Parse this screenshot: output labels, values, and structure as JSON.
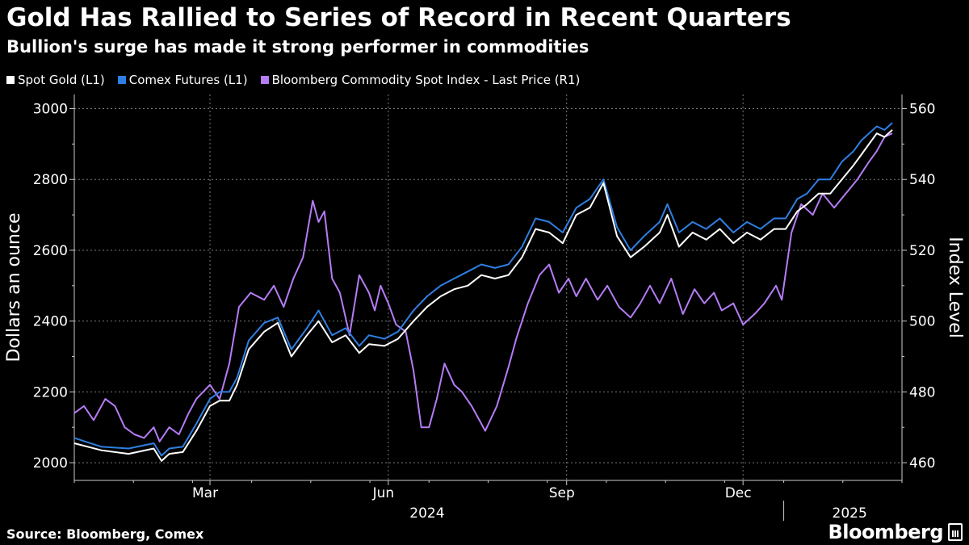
{
  "chart_data": {
    "type": "line",
    "title": "Gold Has Rallied to Series of Record in Recent Quarters",
    "subtitle": "Bullion's surge has made it strong performer in commodities",
    "ylabel_left": "Dollars an ounce",
    "ylabel_right": "Index Level",
    "ylim_left": [
      1950,
      3040
    ],
    "ylim_right": [
      455,
      564
    ],
    "yticks_left": [
      2000,
      2200,
      2400,
      2600,
      2800,
      3000
    ],
    "yticks_right": [
      460,
      480,
      500,
      520,
      540,
      560
    ],
    "xlim": [
      0,
      427
    ],
    "x_month_labels": [
      {
        "label": "Mar",
        "x": 70
      },
      {
        "label": "Jun",
        "x": 162
      },
      {
        "label": "Sep",
        "x": 254
      },
      {
        "label": "Dec",
        "x": 345
      }
    ],
    "x_year_labels": [
      {
        "label": "2024",
        "x": 182
      },
      {
        "label": "2025",
        "x": 400
      }
    ],
    "year_separator_x": 366,
    "grid": true,
    "series": [
      {
        "name": "Spot Gold (L1)",
        "axis": "left",
        "color": "#ffffff",
        "x": [
          0,
          14,
          28,
          41,
          45,
          49,
          56,
          63,
          70,
          75,
          80,
          84,
          90,
          98,
          105,
          112,
          120,
          126,
          133,
          140,
          147,
          152,
          160,
          167,
          175,
          182,
          189,
          196,
          203,
          210,
          217,
          224,
          231,
          238,
          245,
          252,
          259,
          266,
          273,
          280,
          287,
          294,
          302,
          306,
          312,
          319,
          326,
          333,
          340,
          347,
          354,
          361,
          367,
          373,
          378,
          384,
          390,
          396,
          402,
          406,
          410,
          414,
          418,
          422
        ],
        "values": [
          2055,
          2035,
          2025,
          2040,
          2005,
          2025,
          2030,
          2090,
          2160,
          2175,
          2175,
          2220,
          2320,
          2370,
          2395,
          2300,
          2360,
          2400,
          2340,
          2360,
          2310,
          2335,
          2330,
          2350,
          2400,
          2440,
          2470,
          2490,
          2500,
          2530,
          2520,
          2530,
          2580,
          2660,
          2650,
          2620,
          2700,
          2720,
          2790,
          2640,
          2580,
          2610,
          2650,
          2700,
          2610,
          2650,
          2630,
          2660,
          2620,
          2650,
          2630,
          2660,
          2660,
          2710,
          2730,
          2760,
          2760,
          2800,
          2840,
          2870,
          2900,
          2930,
          2920,
          2940
        ]
      },
      {
        "name": "Comex Futures (L1)",
        "axis": "left",
        "color": "#2e7fe2",
        "x": [
          0,
          14,
          28,
          41,
          45,
          49,
          56,
          63,
          70,
          75,
          80,
          84,
          90,
          98,
          105,
          112,
          120,
          126,
          133,
          140,
          147,
          152,
          160,
          167,
          175,
          182,
          189,
          196,
          203,
          210,
          217,
          224,
          231,
          238,
          245,
          252,
          259,
          266,
          273,
          280,
          287,
          294,
          302,
          306,
          312,
          319,
          326,
          333,
          340,
          347,
          354,
          361,
          367,
          373,
          378,
          384,
          390,
          396,
          402,
          406,
          410,
          414,
          418,
          422
        ],
        "values": [
          2070,
          2045,
          2040,
          2055,
          2020,
          2040,
          2045,
          2110,
          2180,
          2200,
          2200,
          2240,
          2345,
          2395,
          2410,
          2320,
          2380,
          2430,
          2360,
          2380,
          2330,
          2360,
          2350,
          2370,
          2430,
          2470,
          2500,
          2520,
          2540,
          2560,
          2550,
          2560,
          2610,
          2690,
          2680,
          2650,
          2720,
          2745,
          2800,
          2665,
          2600,
          2640,
          2680,
          2730,
          2650,
          2680,
          2660,
          2690,
          2650,
          2680,
          2660,
          2690,
          2690,
          2745,
          2760,
          2800,
          2800,
          2850,
          2880,
          2910,
          2930,
          2950,
          2940,
          2960
        ]
      },
      {
        "name": "Bloomberg Commodity Spot Index - Last Price (R1)",
        "axis": "right",
        "color": "#b57cf5",
        "x": [
          0,
          5,
          10,
          16,
          21,
          26,
          31,
          36,
          41,
          44,
          49,
          54,
          59,
          63,
          70,
          75,
          80,
          85,
          91,
          98,
          103,
          108,
          113,
          118,
          123,
          126,
          129,
          133,
          137,
          142,
          147,
          152,
          155,
          158,
          162,
          166,
          171,
          175,
          179,
          183,
          187,
          191,
          196,
          200,
          205,
          209,
          212,
          218,
          224,
          228,
          234,
          240,
          245,
          250,
          255,
          259,
          264,
          270,
          275,
          281,
          287,
          292,
          297,
          302,
          308,
          314,
          320,
          325,
          330,
          334,
          340,
          345,
          351,
          356,
          362,
          365,
          370,
          375,
          381,
          386,
          392,
          398,
          404,
          410,
          414,
          418,
          422
        ],
        "values": [
          474,
          476,
          472,
          478,
          476,
          470,
          468,
          467,
          470,
          466,
          470,
          468,
          474,
          478,
          482,
          478,
          488,
          504,
          508,
          506,
          510,
          504,
          512,
          518,
          534,
          528,
          531,
          512,
          508,
          496,
          513,
          508,
          503,
          510,
          505,
          499,
          497,
          486,
          470,
          470,
          478,
          488,
          482,
          480,
          476,
          472,
          469,
          476,
          487,
          495,
          505,
          513,
          516,
          508,
          512,
          507,
          512,
          506,
          510,
          504,
          501,
          505,
          510,
          505,
          512,
          502,
          509,
          505,
          508,
          503,
          505,
          499,
          502,
          505,
          510,
          506,
          525,
          533,
          530,
          536,
          532,
          536,
          540,
          545,
          548,
          552,
          553
        ]
      }
    ]
  }
}
